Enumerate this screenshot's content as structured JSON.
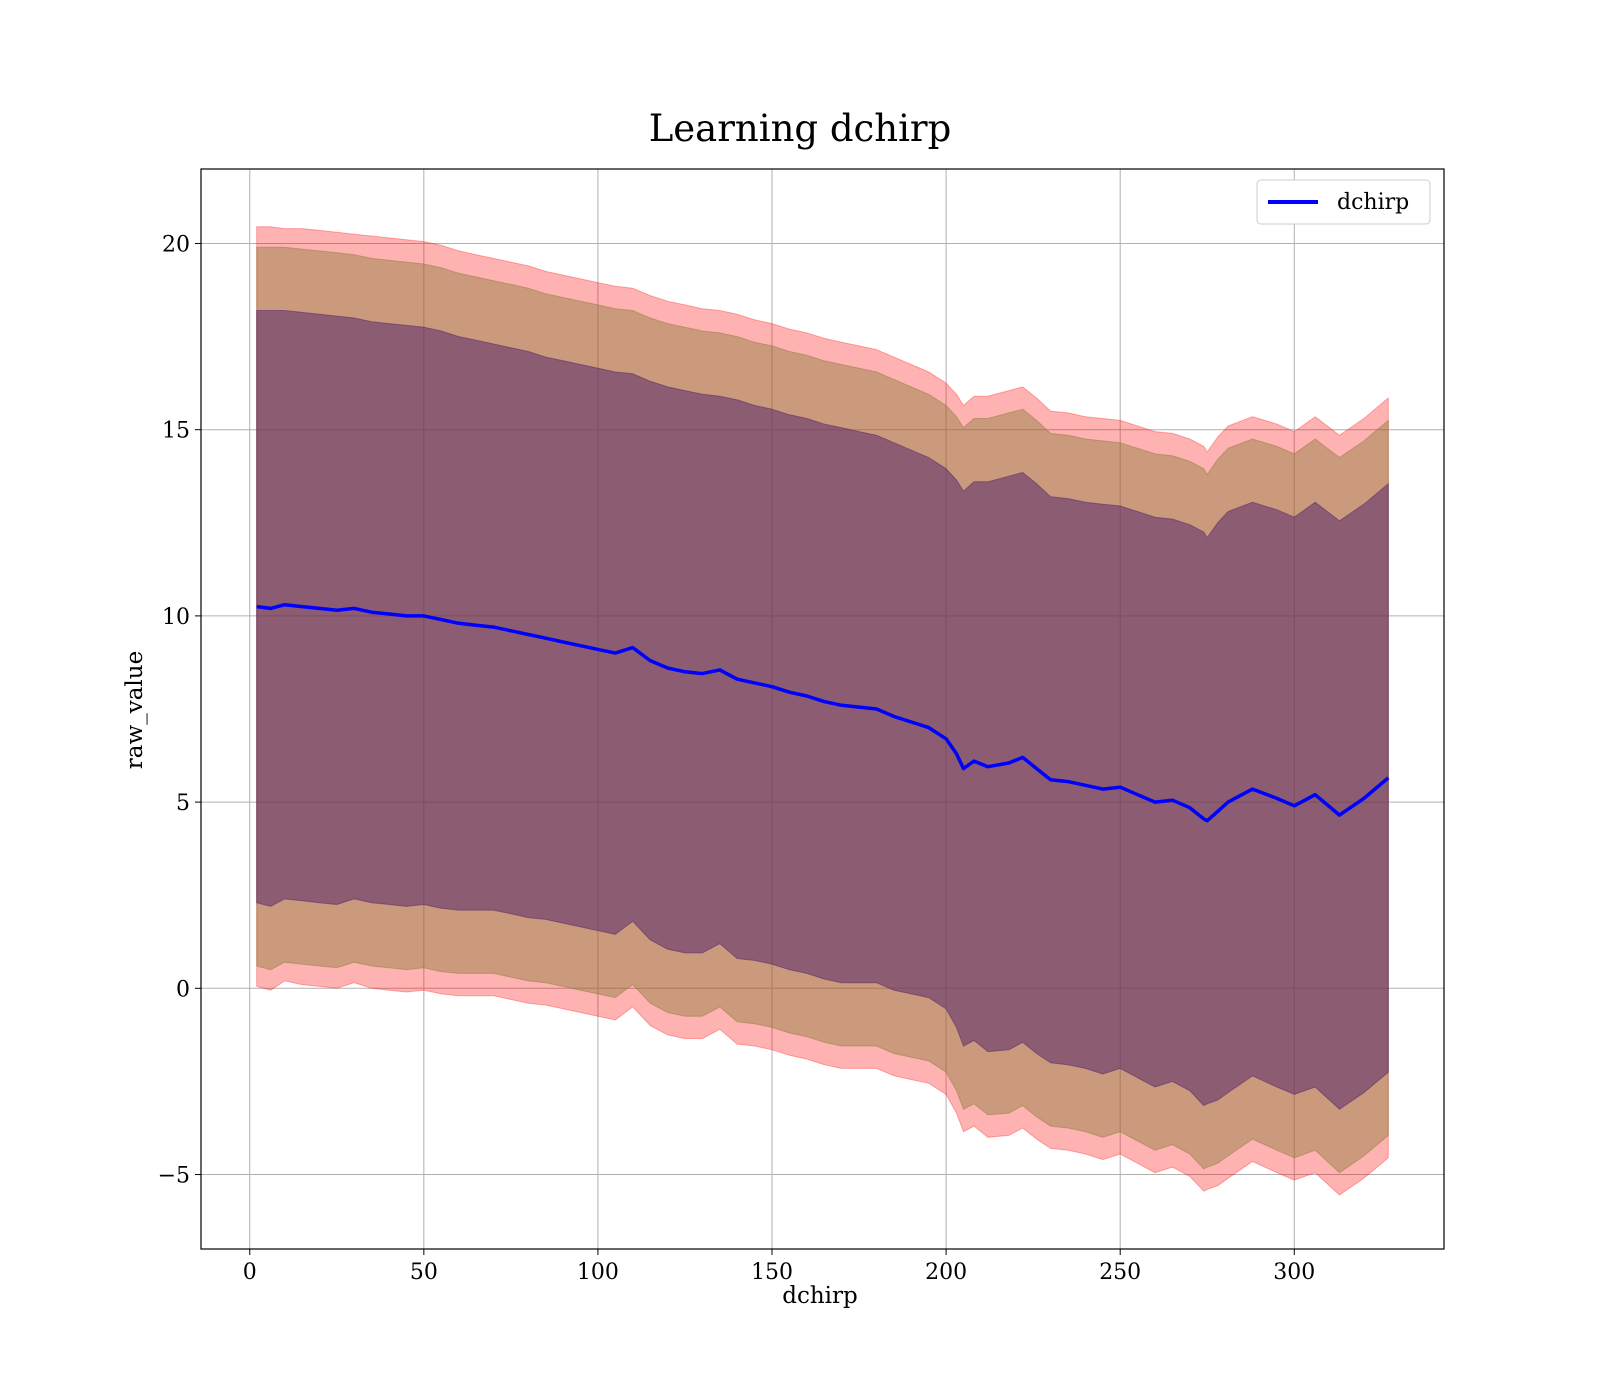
{
  "chart_data": {
    "type": "line",
    "title": "Learning dchirp",
    "xlabel": "dchirp",
    "ylabel": "raw_value",
    "xlim": [
      -14,
      343
    ],
    "ylim": [
      -7,
      22
    ],
    "xticks": [
      0,
      50,
      100,
      150,
      200,
      250,
      300
    ],
    "xtick_labels": [
      "0",
      "50",
      "100",
      "150",
      "200",
      "250",
      "300"
    ],
    "yticks": [
      -5,
      0,
      5,
      10,
      15,
      20
    ],
    "ytick_labels": [
      "−5",
      "0",
      "5",
      "10",
      "15",
      "20"
    ],
    "grid": true,
    "legend_position": "top-right",
    "colors": {
      "line": "#0000ff",
      "band_outer": "#ff0000",
      "band_middle": "#8b7a3a",
      "band_inner": "#5a2a6a"
    },
    "series": [
      {
        "name": "dchirp",
        "x": [
          2,
          6,
          10,
          15,
          20,
          25,
          30,
          35,
          40,
          45,
          50,
          55,
          60,
          65,
          70,
          75,
          80,
          85,
          90,
          95,
          100,
          105,
          110,
          115,
          120,
          125,
          130,
          135,
          140,
          145,
          150,
          155,
          160,
          165,
          170,
          175,
          180,
          185,
          190,
          195,
          200,
          203,
          205,
          208,
          212,
          218,
          222,
          226,
          230,
          235,
          240,
          245,
          250,
          255,
          260,
          265,
          270,
          274,
          275,
          278,
          281,
          288,
          295,
          300,
          306,
          313,
          320,
          327
        ],
        "values": [
          10.25,
          10.2,
          10.3,
          10.25,
          10.2,
          10.15,
          10.2,
          10.1,
          10.05,
          10.0,
          10.0,
          9.9,
          9.8,
          9.75,
          9.7,
          9.6,
          9.5,
          9.4,
          9.3,
          9.2,
          9.1,
          9.0,
          9.15,
          8.8,
          8.6,
          8.5,
          8.45,
          8.55,
          8.3,
          8.2,
          8.1,
          7.95,
          7.85,
          7.7,
          7.6,
          7.55,
          7.5,
          7.3,
          7.15,
          7.0,
          6.7,
          6.3,
          5.9,
          6.1,
          5.95,
          6.05,
          6.2,
          5.9,
          5.6,
          5.55,
          5.45,
          5.35,
          5.4,
          5.2,
          5.0,
          5.05,
          4.85,
          4.55,
          4.5,
          4.75,
          5.0,
          5.35,
          5.1,
          4.9,
          5.2,
          4.65,
          5.1,
          5.65
        ]
      }
    ],
    "bands": [
      {
        "level": "outer",
        "upper": [
          20.45,
          20.45,
          20.4,
          20.4,
          20.35,
          20.3,
          20.25,
          20.2,
          20.15,
          20.1,
          20.05,
          19.95,
          19.8,
          19.7,
          19.6,
          19.5,
          19.4,
          19.25,
          19.15,
          19.05,
          18.95,
          18.85,
          18.8,
          18.6,
          18.45,
          18.35,
          18.25,
          18.2,
          18.1,
          17.95,
          17.85,
          17.7,
          17.6,
          17.45,
          17.35,
          17.25,
          17.15,
          16.95,
          16.75,
          16.55,
          16.25,
          15.95,
          15.65,
          15.9,
          15.9,
          16.05,
          16.15,
          15.85,
          15.5,
          15.45,
          15.35,
          15.3,
          15.25,
          15.1,
          14.95,
          14.9,
          14.75,
          14.55,
          14.4,
          14.8,
          15.1,
          15.35,
          15.15,
          14.95,
          15.35,
          14.85,
          15.3,
          15.85
        ]
      },
      {
        "level": "middle",
        "upper": [
          19.9,
          19.9,
          19.9,
          19.85,
          19.8,
          19.75,
          19.7,
          19.6,
          19.55,
          19.5,
          19.45,
          19.35,
          19.2,
          19.1,
          19.0,
          18.9,
          18.8,
          18.65,
          18.55,
          18.45,
          18.35,
          18.25,
          18.2,
          18.0,
          17.85,
          17.75,
          17.65,
          17.6,
          17.5,
          17.35,
          17.25,
          17.1,
          17.0,
          16.85,
          16.75,
          16.65,
          16.55,
          16.35,
          16.15,
          15.95,
          15.65,
          15.35,
          15.05,
          15.3,
          15.3,
          15.45,
          15.55,
          15.25,
          14.9,
          14.85,
          14.75,
          14.7,
          14.65,
          14.5,
          14.35,
          14.3,
          14.15,
          13.95,
          13.8,
          14.2,
          14.5,
          14.75,
          14.55,
          14.35,
          14.75,
          14.25,
          14.7,
          15.25
        ]
      },
      {
        "level": "inner",
        "upper": [
          18.2,
          18.2,
          18.2,
          18.15,
          18.1,
          18.05,
          18.0,
          17.9,
          17.85,
          17.8,
          17.75,
          17.65,
          17.5,
          17.4,
          17.3,
          17.2,
          17.1,
          16.95,
          16.85,
          16.75,
          16.65,
          16.55,
          16.5,
          16.3,
          16.15,
          16.05,
          15.95,
          15.9,
          15.8,
          15.65,
          15.55,
          15.4,
          15.3,
          15.15,
          15.05,
          14.95,
          14.85,
          14.65,
          14.45,
          14.25,
          13.95,
          13.65,
          13.35,
          13.6,
          13.6,
          13.75,
          13.85,
          13.55,
          13.2,
          13.15,
          13.05,
          13.0,
          12.95,
          12.8,
          12.65,
          12.6,
          12.45,
          12.25,
          12.1,
          12.5,
          12.8,
          13.05,
          12.85,
          12.65,
          13.05,
          12.55,
          13.0,
          13.55
        ]
      }
    ]
  },
  "legend": {
    "entries": [
      {
        "label": "dchirp"
      }
    ]
  }
}
